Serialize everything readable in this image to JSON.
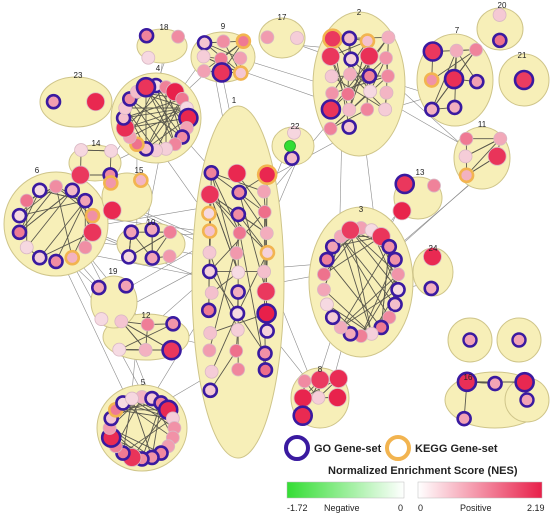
{
  "cluster_labels": [
    "1",
    "2",
    "3",
    "4",
    "5",
    "6",
    "7",
    "8",
    "9",
    "10",
    "11",
    "12",
    "13",
    "14",
    "15",
    "16",
    "17",
    "18",
    "19",
    "20",
    "21",
    "22",
    "23",
    "24"
  ],
  "legend": {
    "go_label": "GO Gene-set",
    "kegg_label": "KEGG Gene-set",
    "go_color": "#3a1aa0",
    "kegg_color": "#f2b450",
    "nes_title": "Normalized Enrichment Score (NES)",
    "negative_min": "-1.72",
    "negative_label": "Negative",
    "negative_zero": "0",
    "positive_zero": "0",
    "positive_label": "Positive",
    "positive_max": "2.19"
  },
  "colors": {
    "cluster_fill": "#f7efb8",
    "cluster_stroke": "#cfc58a",
    "node_low": "#f6dbe3",
    "node_high": "#e8204a",
    "negative_end": "#33dd33",
    "edge": "#555555"
  }
}
